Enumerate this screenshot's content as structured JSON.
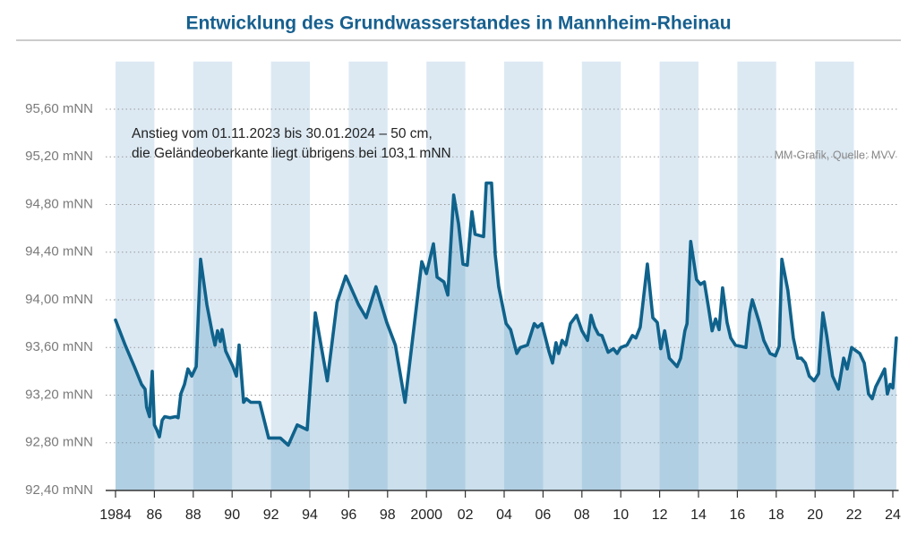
{
  "chart_data": {
    "type": "area",
    "title": "Entwicklung des Grundwasserstandes in Mannheim-Rheinau",
    "annotations": [
      "Anstieg vom 01.11.2023 bis 30.01.2024 – 50 cm,",
      "die Geländeoberkante liegt übrigens bei 103,1 mNN"
    ],
    "source": "MM-Grafik, Quelle: MVV",
    "color": "#0f628b",
    "fill": "rgba(70,140,185,0.28)",
    "stripe_color": "#dce9f3",
    "x": [
      1984.0,
      1984.5,
      1984.97,
      1985.34,
      1985.52,
      1985.6,
      1985.75,
      1985.89,
      1986.0,
      1986.12,
      1986.26,
      1986.4,
      1986.53,
      1986.8,
      1987.09,
      1987.22,
      1987.36,
      1987.55,
      1987.73,
      1987.92,
      1988.15,
      1988.38,
      1988.7,
      1988.98,
      1989.12,
      1989.25,
      1989.39,
      1989.48,
      1989.67,
      1990.04,
      1990.22,
      1990.36,
      1990.59,
      1990.73,
      1990.96,
      1991.42,
      1991.88,
      1992.48,
      1992.89,
      1993.35,
      1993.86,
      1994.28,
      1994.9,
      1995.4,
      1995.85,
      1996.5,
      1996.9,
      1997.4,
      1997.96,
      1998.4,
      1998.9,
      1999.76,
      2000.0,
      2000.36,
      2000.55,
      2000.9,
      2001.1,
      2001.4,
      2001.65,
      2001.88,
      2002.1,
      2002.34,
      2002.5,
      2002.94,
      2003.08,
      2003.35,
      2003.54,
      2003.72,
      2004.1,
      2004.33,
      2004.65,
      2004.83,
      2005.2,
      2005.55,
      2005.72,
      2005.94,
      2006.3,
      2006.49,
      2006.67,
      2006.8,
      2006.98,
      2007.17,
      2007.41,
      2007.73,
      2008.0,
      2008.29,
      2008.47,
      2008.66,
      2008.85,
      2009.03,
      2009.35,
      2009.62,
      2009.81,
      2010.0,
      2010.32,
      2010.6,
      2010.78,
      2011.0,
      2011.37,
      2011.65,
      2011.88,
      2012.06,
      2012.26,
      2012.5,
      2012.9,
      2013.08,
      2013.3,
      2013.41,
      2013.6,
      2013.9,
      2014.1,
      2014.3,
      2014.52,
      2014.7,
      2014.88,
      2015.06,
      2015.24,
      2015.47,
      2015.66,
      2015.9,
      2016.44,
      2016.63,
      2016.77,
      2017.13,
      2017.36,
      2017.68,
      2017.96,
      2018.15,
      2018.29,
      2018.6,
      2018.88,
      2019.1,
      2019.29,
      2019.5,
      2019.7,
      2019.95,
      2020.18,
      2020.4,
      2020.6,
      2020.9,
      2021.2,
      2021.47,
      2021.65,
      2021.88,
      2022.3,
      2022.53,
      2022.75,
      2022.94,
      2023.12,
      2023.4,
      2023.58,
      2023.72,
      2023.86,
      2024.0,
      2024.18
    ],
    "values": [
      93.83,
      93.62,
      93.44,
      93.29,
      93.25,
      93.1,
      93.02,
      93.4,
      92.95,
      92.91,
      92.85,
      92.99,
      93.02,
      93.01,
      93.02,
      93.01,
      93.21,
      93.29,
      93.42,
      93.36,
      93.44,
      94.34,
      93.96,
      93.72,
      93.62,
      93.74,
      93.65,
      93.75,
      93.57,
      93.44,
      93.36,
      93.62,
      93.14,
      93.17,
      93.14,
      93.14,
      92.84,
      92.84,
      92.78,
      92.95,
      92.91,
      93.89,
      93.32,
      93.98,
      94.2,
      93.96,
      93.85,
      94.11,
      93.81,
      93.62,
      93.14,
      94.32,
      94.22,
      94.47,
      94.19,
      94.15,
      94.04,
      94.88,
      94.64,
      94.3,
      94.29,
      94.74,
      94.55,
      94.53,
      94.98,
      94.98,
      94.38,
      94.11,
      93.8,
      93.75,
      93.55,
      93.6,
      93.62,
      93.8,
      93.77,
      93.8,
      93.57,
      93.47,
      93.64,
      93.55,
      93.66,
      93.62,
      93.8,
      93.87,
      93.74,
      93.66,
      93.87,
      93.77,
      93.71,
      93.7,
      93.56,
      93.59,
      93.55,
      93.6,
      93.62,
      93.7,
      93.68,
      93.77,
      94.3,
      93.85,
      93.81,
      93.59,
      93.74,
      93.51,
      93.44,
      93.51,
      93.74,
      93.8,
      94.49,
      94.17,
      94.13,
      94.15,
      93.93,
      93.74,
      93.84,
      93.75,
      94.1,
      93.81,
      93.68,
      93.62,
      93.6,
      93.89,
      94.0,
      93.81,
      93.66,
      93.55,
      93.53,
      93.61,
      94.34,
      94.08,
      93.68,
      93.51,
      93.51,
      93.47,
      93.36,
      93.32,
      93.38,
      93.89,
      93.7,
      93.36,
      93.25,
      93.51,
      93.42,
      93.6,
      93.55,
      93.47,
      93.21,
      93.17,
      93.27,
      93.36,
      93.42,
      93.21,
      93.29,
      93.26,
      93.68
    ],
    "xlim": [
      1984,
      2024.3
    ],
    "xticks": [
      1984,
      {
        "value": 1986,
        "label": "86"
      },
      {
        "value": 1988,
        "label": "88"
      },
      {
        "value": 1990,
        "label": "90"
      },
      {
        "value": 1992,
        "label": "92"
      },
      {
        "value": 1994,
        "label": "94"
      },
      {
        "value": 1996,
        "label": "96"
      },
      {
        "value": 1998,
        "label": "98"
      },
      2000,
      {
        "value": 2002,
        "label": "02"
      },
      {
        "value": 2004,
        "label": "04"
      },
      {
        "value": 2006,
        "label": "06"
      },
      {
        "value": 2008,
        "label": "08"
      },
      {
        "value": 2010,
        "label": "10"
      },
      {
        "value": 2012,
        "label": "12"
      },
      {
        "value": 2014,
        "label": "14"
      },
      {
        "value": 2016,
        "label": "16"
      },
      {
        "value": 2018,
        "label": "18"
      },
      {
        "value": 2020,
        "label": "20"
      },
      {
        "value": 2022,
        "label": "22"
      },
      {
        "value": 2024,
        "label": "24"
      }
    ],
    "ylim": [
      92.4,
      96.0
    ],
    "yticks": [
      {
        "value": 92.4,
        "label": "92,40 mNN"
      },
      {
        "value": 92.8,
        "label": "92,80 mNN"
      },
      {
        "value": 93.2,
        "label": "93,20 mNN"
      },
      {
        "value": 93.6,
        "label": "93,60 mNN"
      },
      {
        "value": 94.0,
        "label": "94,00 mNN"
      },
      {
        "value": 94.4,
        "label": "94,40 mNN"
      },
      {
        "value": 94.8,
        "label": "94,80 mNN"
      },
      {
        "value": 95.2,
        "label": "95,20 mNN"
      },
      {
        "value": 95.6,
        "label": "95,60 mNN"
      }
    ],
    "grid": true
  }
}
